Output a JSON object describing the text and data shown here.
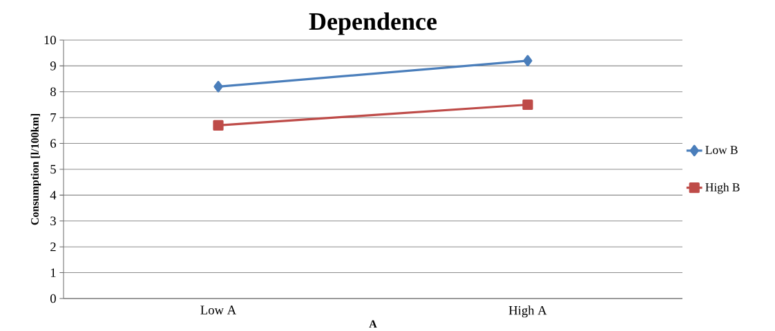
{
  "chart_data": {
    "type": "line",
    "title": "Dependence",
    "xlabel": "A",
    "ylabel": "Consumption [l/100km]",
    "categories": [
      "Low A",
      "High A"
    ],
    "series": [
      {
        "name": "Low B",
        "color": "#4a7ebb",
        "marker": "diamond",
        "values": [
          8.2,
          9.2
        ]
      },
      {
        "name": "High B",
        "color": "#be4b48",
        "marker": "square",
        "values": [
          6.7,
          7.5
        ]
      }
    ],
    "ylim": [
      0,
      10
    ],
    "yticks": [
      0,
      1,
      2,
      3,
      4,
      5,
      6,
      7,
      8,
      9,
      10
    ],
    "grid": "y",
    "legend": "right"
  }
}
